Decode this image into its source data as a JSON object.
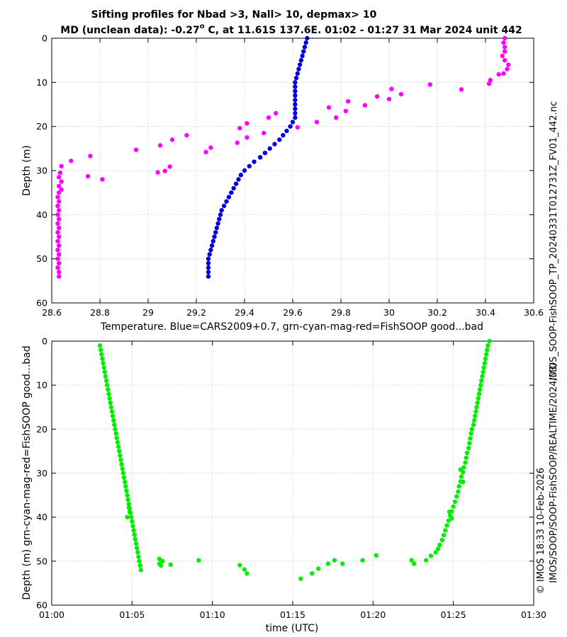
{
  "colors": {
    "blue": "#0000dd",
    "magenta": "#ff00ff",
    "green": "#00ee00",
    "grid": "#c8c8c8"
  },
  "titles": {
    "line1": "Sifting profiles for Nbad >3, Nall> 10, depmax> 10",
    "line2a": "MD (unclean data): -0.27",
    "line2_deg": "o",
    "line2b": " C, at 11.61S 137.6E. 01:02 - 01:27 31 Mar 2024 unit 442"
  },
  "side_labels": {
    "right_file": "IMOS_SOOP-FishSOOP_TP_20240331T012731Z_FV01_442.nc",
    "right_copyright": "© IMOS 18:33 10-Feb-2026",
    "right_path": "IMOS/SOOP/SOOP-FishSOOP/REALTIME/2024/03/"
  },
  "chart_data": [
    {
      "type": "scatter",
      "id": "temperature-profile",
      "xlabel": "Temperature. Blue=CARS2009+0.7, grn-cyan-mag-red=FishSOOP good...bad",
      "ylabel": "Depth (m)",
      "xlim": [
        28.6,
        30.6
      ],
      "ylim": [
        60,
        0
      ],
      "xticks": [
        "28.6",
        "28.8",
        "29",
        "29.2",
        "29.4",
        "29.6",
        "29.8",
        "30",
        "30.2",
        "30.4",
        "30.6"
      ],
      "yticks": [
        "0",
        "10",
        "20",
        "30",
        "40",
        "50",
        "60"
      ],
      "grid": true,
      "series": [
        {
          "name": "CARS2009+0.7",
          "color": "blue",
          "points": [
            [
              29.66,
              0
            ],
            [
              29.655,
              1
            ],
            [
              29.65,
              2
            ],
            [
              29.645,
              3
            ],
            [
              29.64,
              4
            ],
            [
              29.635,
              5
            ],
            [
              29.63,
              6
            ],
            [
              29.625,
              7
            ],
            [
              29.62,
              8
            ],
            [
              29.615,
              9
            ],
            [
              29.61,
              10
            ],
            [
              29.61,
              11
            ],
            [
              29.61,
              12
            ],
            [
              29.61,
              13
            ],
            [
              29.61,
              14
            ],
            [
              29.61,
              15
            ],
            [
              29.61,
              16
            ],
            [
              29.61,
              17
            ],
            [
              29.61,
              18
            ],
            [
              29.6,
              19
            ],
            [
              29.59,
              20
            ],
            [
              29.575,
              21
            ],
            [
              29.56,
              22
            ],
            [
              29.545,
              23
            ],
            [
              29.525,
              24
            ],
            [
              29.505,
              25
            ],
            [
              29.485,
              26
            ],
            [
              29.465,
              27
            ],
            [
              29.44,
              28
            ],
            [
              29.42,
              29
            ],
            [
              29.4,
              30
            ],
            [
              29.385,
              31
            ],
            [
              29.375,
              32
            ],
            [
              29.365,
              33
            ],
            [
              29.355,
              34
            ],
            [
              29.345,
              35
            ],
            [
              29.335,
              36
            ],
            [
              29.325,
              37
            ],
            [
              29.315,
              38
            ],
            [
              29.305,
              39
            ],
            [
              29.3,
              40
            ],
            [
              29.295,
              41
            ],
            [
              29.29,
              42
            ],
            [
              29.285,
              43
            ],
            [
              29.28,
              44
            ],
            [
              29.275,
              45
            ],
            [
              29.27,
              46
            ],
            [
              29.265,
              47
            ],
            [
              29.26,
              48
            ],
            [
              29.255,
              49
            ],
            [
              29.25,
              50
            ],
            [
              29.25,
              51
            ],
            [
              29.25,
              52
            ],
            [
              29.25,
              53
            ],
            [
              29.25,
              54
            ]
          ]
        },
        {
          "name": "FishSOOP bad",
          "color": "magenta",
          "points": [
            [
              30.48,
              0
            ],
            [
              30.475,
              1
            ],
            [
              30.48,
              2
            ],
            [
              30.48,
              3
            ],
            [
              30.47,
              4
            ],
            [
              30.48,
              5
            ],
            [
              30.495,
              6
            ],
            [
              30.49,
              7
            ],
            [
              30.475,
              8
            ],
            [
              30.455,
              8.2
            ],
            [
              30.42,
              9.5
            ],
            [
              30.415,
              10.3
            ],
            [
              30.17,
              10.5
            ],
            [
              30.3,
              11.6
            ],
            [
              30.01,
              11.5
            ],
            [
              30.05,
              12.7
            ],
            [
              29.95,
              13.2
            ],
            [
              30.0,
              13.8
            ],
            [
              29.83,
              14.3
            ],
            [
              29.9,
              15.2
            ],
            [
              29.75,
              15.7
            ],
            [
              29.82,
              16.5
            ],
            [
              29.53,
              17
            ],
            [
              29.5,
              18
            ],
            [
              29.78,
              18
            ],
            [
              29.7,
              19
            ],
            [
              29.41,
              19.3
            ],
            [
              29.38,
              20.4
            ],
            [
              29.62,
              20.2
            ],
            [
              29.48,
              21.5
            ],
            [
              29.16,
              22
            ],
            [
              29.41,
              22.5
            ],
            [
              29.1,
              23
            ],
            [
              29.37,
              23.7
            ],
            [
              29.05,
              24.3
            ],
            [
              29.26,
              24.8
            ],
            [
              28.95,
              25.3
            ],
            [
              29.24,
              25.8
            ],
            [
              28.76,
              26.7
            ],
            [
              28.68,
              27.8
            ],
            [
              29.09,
              29.1
            ],
            [
              28.64,
              29
            ],
            [
              29.07,
              30.1
            ],
            [
              29.04,
              30.4
            ],
            [
              28.635,
              30.5
            ],
            [
              28.75,
              31.3
            ],
            [
              28.63,
              31.5
            ],
            [
              28.81,
              32
            ],
            [
              28.64,
              32.5
            ],
            [
              28.63,
              33.5
            ],
            [
              28.64,
              34.3
            ],
            [
              28.63,
              35
            ],
            [
              28.625,
              36
            ],
            [
              28.63,
              37
            ],
            [
              28.625,
              38
            ],
            [
              28.63,
              39
            ],
            [
              28.625,
              40
            ],
            [
              28.63,
              41
            ],
            [
              28.625,
              42
            ],
            [
              28.63,
              43
            ],
            [
              28.625,
              44
            ],
            [
              28.63,
              45
            ],
            [
              28.625,
              46
            ],
            [
              28.63,
              47
            ],
            [
              28.625,
              48
            ],
            [
              28.63,
              49
            ],
            [
              28.625,
              50
            ],
            [
              28.63,
              51
            ],
            [
              28.625,
              52
            ],
            [
              28.63,
              53
            ],
            [
              28.63,
              54
            ]
          ]
        }
      ]
    },
    {
      "type": "scatter",
      "id": "time-depth-profile",
      "xlabel": "time (UTC)",
      "ylabel": "Depth (m) grn-cyan-mag-red=FishSOOP good...bad",
      "xlim": [
        60,
        90
      ],
      "ylim": [
        60,
        0
      ],
      "xticks": [
        "01:00",
        "01:05",
        "01:10",
        "01:15",
        "01:20",
        "01:25",
        "01:30"
      ],
      "yticks": [
        "0",
        "10",
        "20",
        "30",
        "40",
        "50",
        "60"
      ],
      "grid": true,
      "series": [
        {
          "name": "FishSOOP good",
          "color": "green",
          "points": [
            [
              63.0,
              1
            ],
            [
              63.05,
              2
            ],
            [
              63.1,
              3
            ],
            [
              63.15,
              4
            ],
            [
              63.2,
              5
            ],
            [
              63.25,
              6
            ],
            [
              63.3,
              7
            ],
            [
              63.35,
              8
            ],
            [
              63.4,
              9
            ],
            [
              63.45,
              10
            ],
            [
              63.5,
              11
            ],
            [
              63.55,
              12
            ],
            [
              63.6,
              13
            ],
            [
              63.65,
              14
            ],
            [
              63.7,
              15
            ],
            [
              63.75,
              16
            ],
            [
              63.8,
              17
            ],
            [
              63.85,
              18
            ],
            [
              63.9,
              19
            ],
            [
              63.95,
              20
            ],
            [
              64.0,
              21
            ],
            [
              64.05,
              22
            ],
            [
              64.1,
              23
            ],
            [
              64.15,
              24
            ],
            [
              64.2,
              25
            ],
            [
              64.25,
              26
            ],
            [
              64.3,
              27
            ],
            [
              64.35,
              28
            ],
            [
              64.4,
              29
            ],
            [
              64.45,
              30
            ],
            [
              64.5,
              31
            ],
            [
              64.55,
              32
            ],
            [
              64.6,
              33
            ],
            [
              64.65,
              34
            ],
            [
              64.7,
              35
            ],
            [
              64.75,
              36
            ],
            [
              64.8,
              37
            ],
            [
              64.85,
              38
            ],
            [
              64.9,
              39
            ],
            [
              64.8,
              37.8
            ],
            [
              64.85,
              38.8
            ],
            [
              64.7,
              40
            ],
            [
              64.95,
              40
            ],
            [
              65.0,
              41
            ],
            [
              65.05,
              42
            ],
            [
              65.1,
              43
            ],
            [
              65.15,
              44
            ],
            [
              65.2,
              45
            ],
            [
              65.25,
              46
            ],
            [
              65.3,
              47
            ],
            [
              65.35,
              48
            ],
            [
              65.4,
              49
            ],
            [
              65.45,
              50
            ],
            [
              65.5,
              51
            ],
            [
              65.55,
              52
            ],
            [
              66.7,
              49.5
            ],
            [
              66.7,
              50.6
            ],
            [
              66.8,
              51
            ],
            [
              66.9,
              50
            ],
            [
              67.4,
              50.8
            ],
            [
              69.15,
              49.8
            ],
            [
              71.7,
              50.9
            ],
            [
              72.0,
              51.9
            ],
            [
              72.15,
              52.8
            ],
            [
              75.5,
              54
            ],
            [
              76.2,
              52.8
            ],
            [
              76.6,
              51.7
            ],
            [
              77.2,
              50.6
            ],
            [
              77.6,
              49.8
            ],
            [
              78.1,
              50.6
            ],
            [
              79.35,
              49.8
            ],
            [
              80.2,
              48.7
            ],
            [
              82.4,
              49.8
            ],
            [
              82.55,
              50.6
            ],
            [
              83.3,
              49.8
            ],
            [
              83.6,
              48.8
            ],
            [
              83.9,
              48
            ],
            [
              84.05,
              47.2
            ],
            [
              84.15,
              46.3
            ],
            [
              84.3,
              45.2
            ],
            [
              84.4,
              44.1
            ],
            [
              84.5,
              43.0
            ],
            [
              84.6,
              41.9
            ],
            [
              84.7,
              40.8
            ],
            [
              84.8,
              39.7
            ],
            [
              84.9,
              38.7
            ],
            [
              84.75,
              38.8
            ],
            [
              84.9,
              40.3
            ],
            [
              85.0,
              37.6
            ],
            [
              85.1,
              36.5
            ],
            [
              85.2,
              35.3
            ],
            [
              85.3,
              34.2
            ],
            [
              85.35,
              33.0
            ],
            [
              85.45,
              31.9
            ],
            [
              85.5,
              30.8
            ],
            [
              85.6,
              29.8
            ],
            [
              85.45,
              29.2
            ],
            [
              85.6,
              32.0
            ],
            [
              85.65,
              28.7
            ],
            [
              85.75,
              27.6
            ],
            [
              85.8,
              26.5
            ],
            [
              85.85,
              25.4
            ],
            [
              85.95,
              24.3
            ],
            [
              86.0,
              23.2
            ],
            [
              86.05,
              22.1
            ],
            [
              86.1,
              21.0
            ],
            [
              86.15,
              20.0
            ],
            [
              86.25,
              19.0
            ],
            [
              86.3,
              18.0
            ],
            [
              86.35,
              17.0
            ],
            [
              86.4,
              16.0
            ],
            [
              86.45,
              15.0
            ],
            [
              86.5,
              14.0
            ],
            [
              86.55,
              13.0
            ],
            [
              86.6,
              12.0
            ],
            [
              86.65,
              11.0
            ],
            [
              86.7,
              10.0
            ],
            [
              86.75,
              9.0
            ],
            [
              86.8,
              8.0
            ],
            [
              86.85,
              7.0
            ],
            [
              86.9,
              6.0
            ],
            [
              86.95,
              5.0
            ],
            [
              87.0,
              4.0
            ],
            [
              87.05,
              3.0
            ],
            [
              87.1,
              2.0
            ],
            [
              87.15,
              1.0
            ],
            [
              87.25,
              0
            ]
          ]
        }
      ]
    }
  ]
}
